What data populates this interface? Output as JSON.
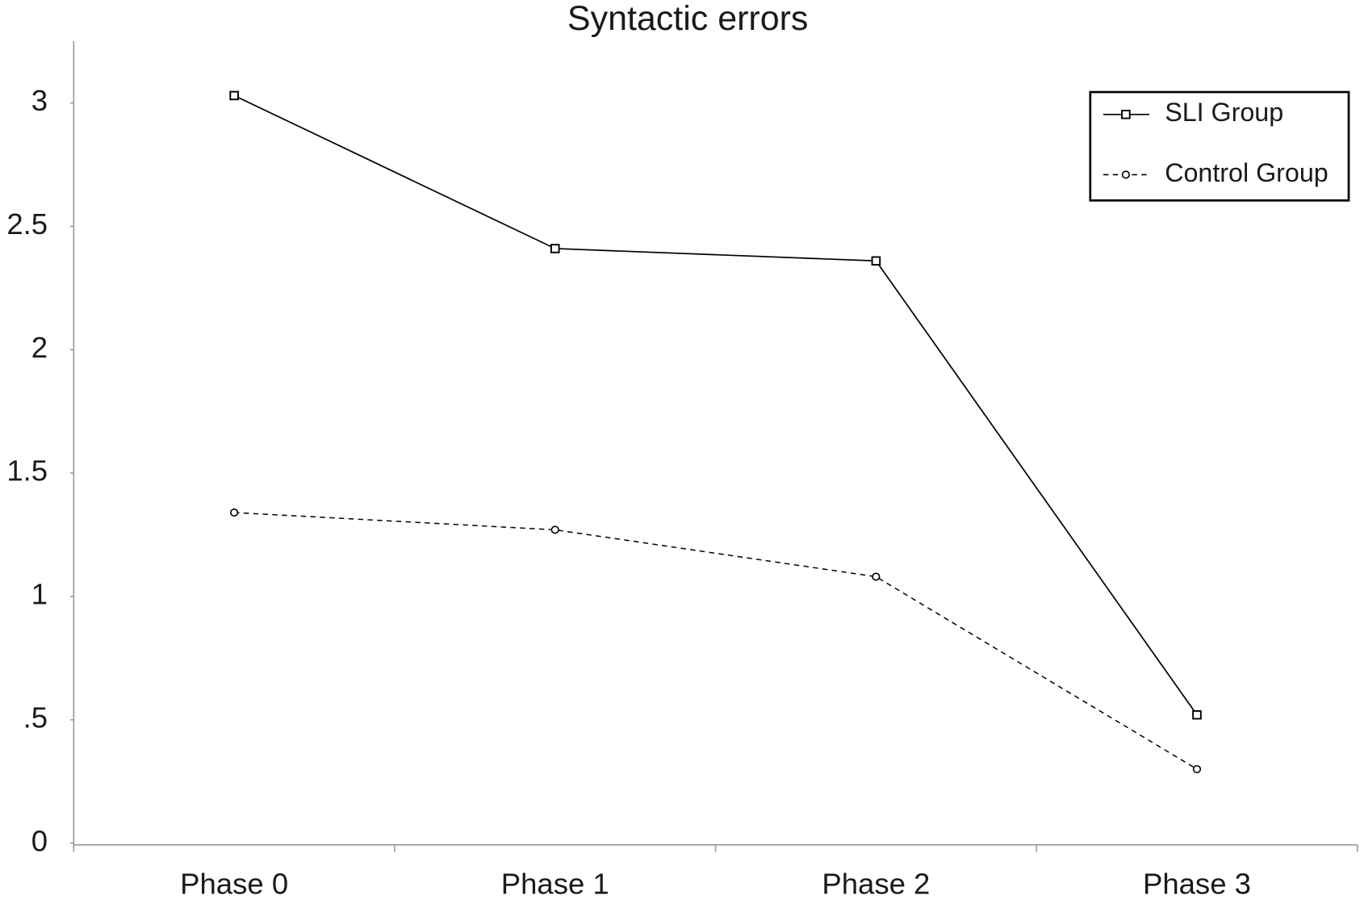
{
  "chart_data": {
    "type": "line",
    "title": "Syntactic errors",
    "categories": [
      "Phase 0",
      "Phase 1",
      "Phase 2",
      "Phase 3"
    ],
    "series": [
      {
        "name": "SLI Group",
        "color": "#000000",
        "dash": false,
        "marker": "square",
        "values": [
          3.03,
          2.41,
          2.36,
          0.52
        ]
      },
      {
        "name": "Control Group",
        "color": "#000000",
        "dash": true,
        "marker": "circle",
        "values": [
          1.34,
          1.27,
          1.08,
          0.3
        ]
      }
    ],
    "ylim": [
      0,
      3.25
    ],
    "yticks": [
      0,
      {
        "value": 0.5,
        "label": ".5"
      },
      1,
      1.5,
      2,
      2.5,
      3
    ],
    "grid": false,
    "legend": "upper-right"
  }
}
